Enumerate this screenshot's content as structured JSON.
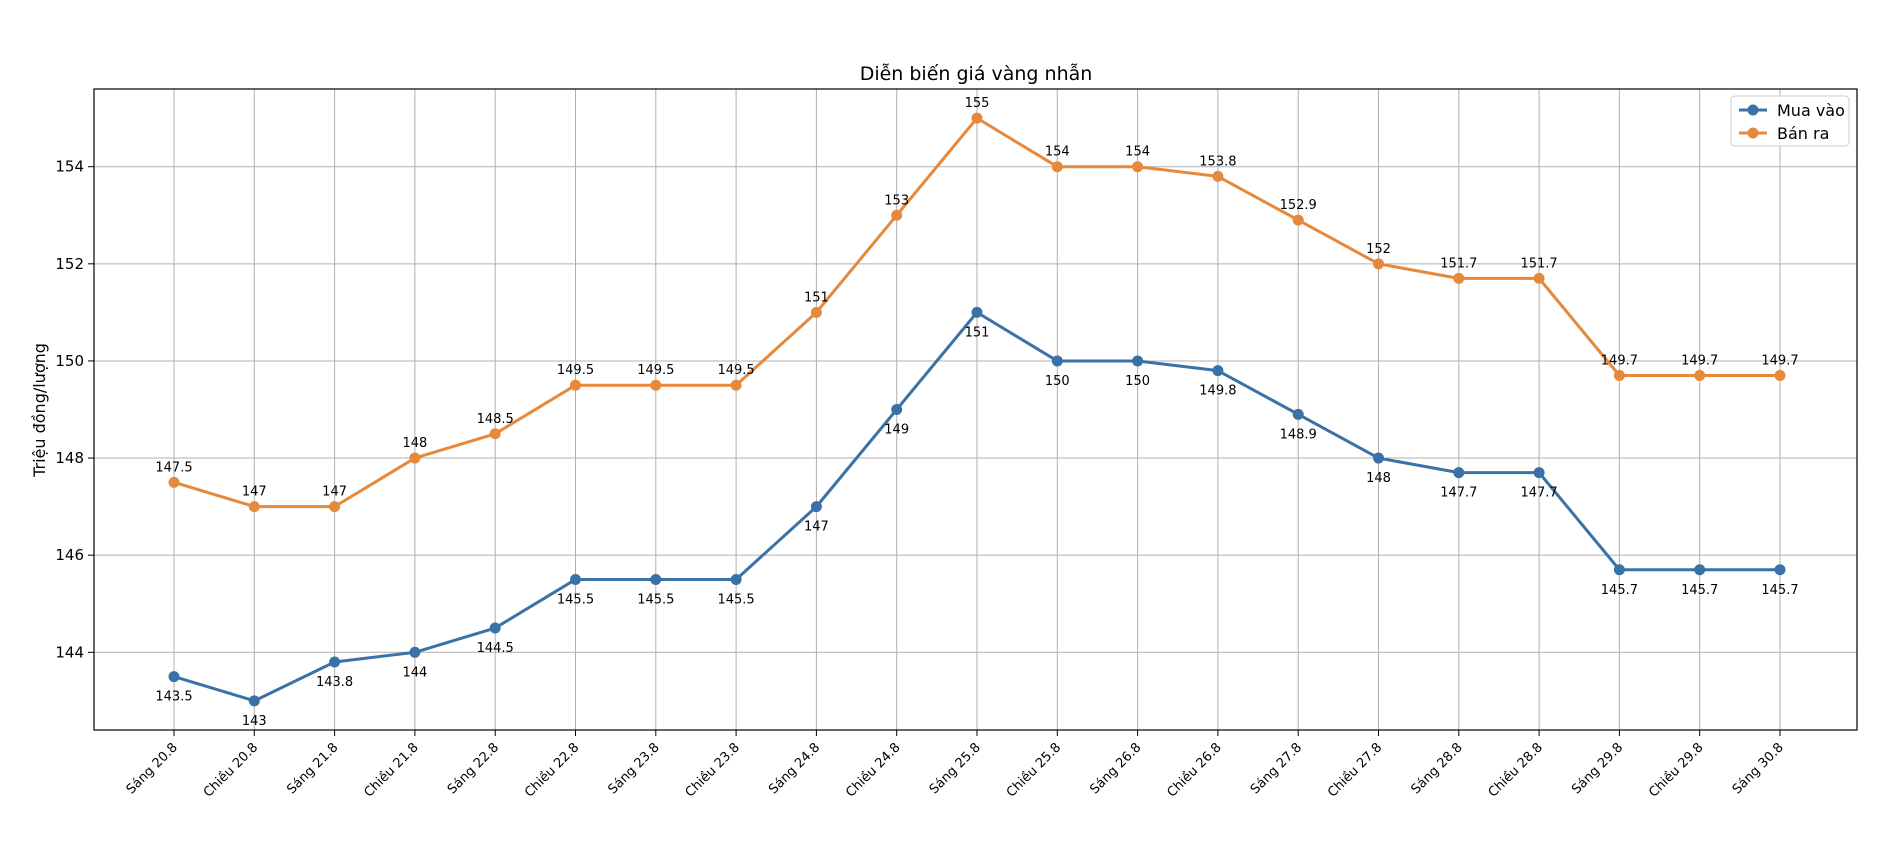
{
  "chart_data": {
    "type": "line",
    "title": "Diễn biến giá vàng nhẫn",
    "xlabel": "",
    "ylabel": "Triệu đồng/lượng",
    "categories": [
      "Sáng 20.8",
      "Chiều 20.8",
      "Sáng 21.8",
      "Chiều 21.8",
      "Sáng 22.8",
      "Chiều 22.8",
      "Sáng 23.8",
      "Chiều 23.8",
      "Sáng 24.8",
      "Chiều 24.8",
      "Sáng 25.8",
      "Chiều 25.8",
      "Sáng 26.8",
      "Chiều 26.8",
      "Sáng 27.8",
      "Chiều 27.8",
      "Sáng 28.8",
      "Chiều 28.8",
      "Sáng 29.8",
      "Chiều 29.8",
      "Sáng 30.8"
    ],
    "series": [
      {
        "name": "Mua vào",
        "color": "#3a72a8",
        "label_position": "below",
        "values": [
          143.5,
          143,
          143.8,
          144,
          144.5,
          145.5,
          145.5,
          145.5,
          147,
          149,
          151,
          150,
          150,
          149.8,
          148.9,
          148,
          147.7,
          147.7,
          145.7,
          145.7,
          145.7
        ]
      },
      {
        "name": "Bán ra",
        "color": "#e6893b",
        "label_position": "above",
        "values": [
          147.5,
          147,
          147,
          148,
          148.5,
          149.5,
          149.5,
          149.5,
          151,
          153,
          155,
          154,
          154,
          153.8,
          152.9,
          152,
          151.7,
          151.7,
          149.7,
          149.7,
          149.7
        ]
      }
    ],
    "yticks": [
      144,
      146,
      148,
      150,
      152,
      154
    ],
    "ylim": [
      142.4,
      155.6
    ],
    "grid": true,
    "legend_position": "top-right"
  }
}
